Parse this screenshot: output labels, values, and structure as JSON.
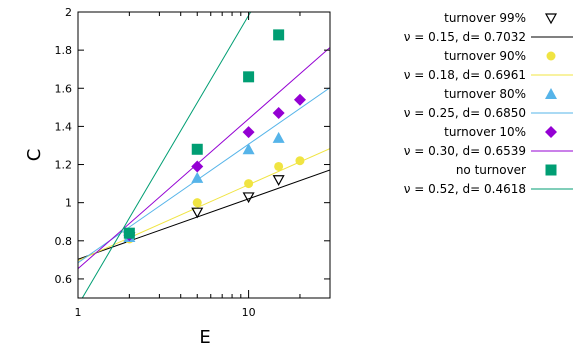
{
  "chart_data": {
    "type": "scatter",
    "xlabel": "E",
    "ylabel": "C",
    "xscale": "log",
    "xlim": [
      1,
      30
    ],
    "ylim": [
      0.5,
      2.0
    ],
    "xticks": [
      1,
      10
    ],
    "xtick_labels": [
      "1",
      "10"
    ],
    "yticks": [
      0.6,
      0.8,
      1.0,
      1.2,
      1.4,
      1.6,
      1.8,
      2.0
    ],
    "ytick_labels": [
      "0.6",
      "0.8",
      "1",
      "1.2",
      "1.4",
      "1.6",
      "1.8",
      "2"
    ],
    "grid": false,
    "legend_position": "outside-right",
    "series": [
      {
        "name": "turnover 99%",
        "marker": "triangle-down-open",
        "color": "#000000",
        "x": [
          2,
          5,
          10,
          15
        ],
        "y": [
          0.82,
          0.95,
          1.03,
          1.12
        ],
        "fit": {
          "name": "ν = 0.15, d= 0.7032",
          "nu": 0.15,
          "d": 0.7032,
          "color": "#000000"
        }
      },
      {
        "name": "turnover 90%",
        "marker": "circle",
        "color": "#f0e442",
        "x": [
          2,
          5,
          10,
          15,
          20
        ],
        "y": [
          0.81,
          1.0,
          1.1,
          1.19,
          1.22
        ],
        "fit": {
          "name": "ν = 0.18, d= 0.6961",
          "nu": 0.18,
          "d": 0.6961,
          "color": "#f0e442"
        }
      },
      {
        "name": "turnover 80%",
        "marker": "triangle-up",
        "color": "#56b4e9",
        "x": [
          2,
          5,
          10,
          15
        ],
        "y": [
          0.82,
          1.13,
          1.28,
          1.34
        ],
        "fit": {
          "name": "ν = 0.25, d= 0.6850",
          "nu": 0.25,
          "d": 0.685,
          "color": "#56b4e9"
        }
      },
      {
        "name": "turnover 10%",
        "marker": "diamond",
        "color": "#9400d3",
        "x": [
          2,
          5,
          10,
          15,
          20
        ],
        "y": [
          0.83,
          1.19,
          1.37,
          1.47,
          1.54
        ],
        "fit": {
          "name": "ν = 0.30, d= 0.6539",
          "nu": 0.3,
          "d": 0.6539,
          "color": "#9400d3"
        }
      },
      {
        "name": "no turnover",
        "marker": "square",
        "color": "#009e73",
        "x": [
          2,
          5,
          10,
          15
        ],
        "y": [
          0.84,
          1.28,
          1.66,
          1.88
        ],
        "fit": {
          "name": "ν = 0.52, d= 0.4618",
          "nu": 0.52,
          "d": 0.4618,
          "color": "#009e73"
        }
      }
    ]
  }
}
